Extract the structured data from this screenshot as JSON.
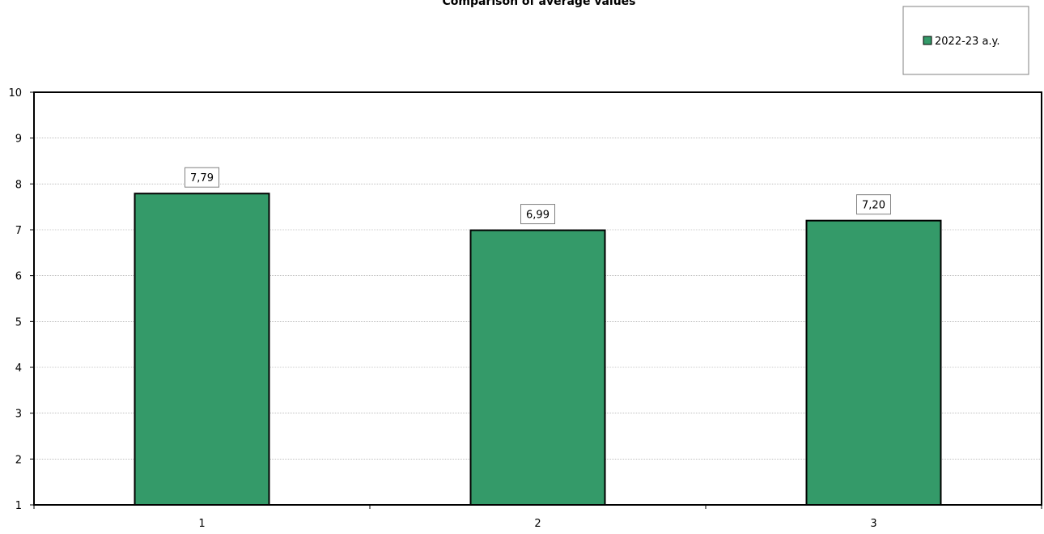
{
  "chart_data": {
    "type": "bar",
    "title": "Comparison of average values",
    "categories": [
      "1",
      "2",
      "3"
    ],
    "series": [
      {
        "name": "2022-23 a.y.",
        "values": [
          7.79,
          6.99,
          7.2
        ],
        "labels": [
          "7,79",
          "6,99",
          "7,20"
        ],
        "color": "#349a69"
      }
    ],
    "ylim": [
      1,
      10
    ],
    "yticks": [
      "1",
      "2",
      "3",
      "4",
      "5",
      "6",
      "7",
      "8",
      "9",
      "10"
    ],
    "grid": true,
    "legend_position": "top-right"
  }
}
